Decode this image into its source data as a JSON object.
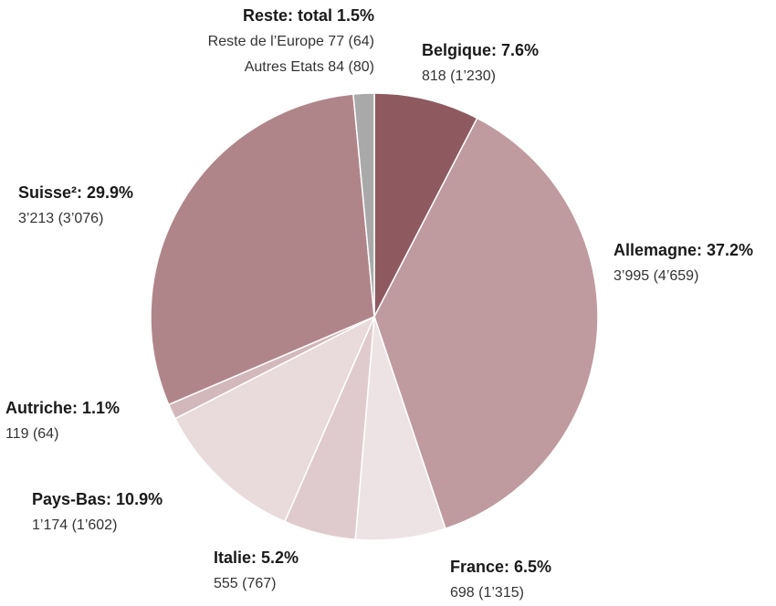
{
  "chart_data": {
    "type": "pie",
    "labels": [
      "Belgique: 7.6%",
      "Allemagne: 37.2%",
      "France: 6.5%",
      "Italie: 5.2%",
      "Pays-Bas: 10.9%",
      "Autriche: 1.1%",
      "Suisse²: 29.9%",
      "Reste: total 1.5%"
    ],
    "values": [
      7.6,
      37.2,
      6.5,
      5.2,
      10.9,
      1.1,
      29.9,
      1.5
    ],
    "details": [
      [
        "818 (1’230)"
      ],
      [
        "3’995 (4’659)"
      ],
      [
        "698 (1’315)"
      ],
      [
        "555 (767)"
      ],
      [
        "1’174 (1’602)"
      ],
      [
        "119 (64)"
      ],
      [
        "3’213 (3’076)"
      ],
      [
        "Reste de l’Europe 77 (64)",
        "Autres Etats 84 (80)"
      ]
    ],
    "colors": [
      "#8e5a60",
      "#bf9a9e",
      "#ede3e4",
      "#dfcbcd",
      "#e9dadc",
      "#d3b8bb",
      "#b08589",
      "#a9a9a9"
    ]
  }
}
